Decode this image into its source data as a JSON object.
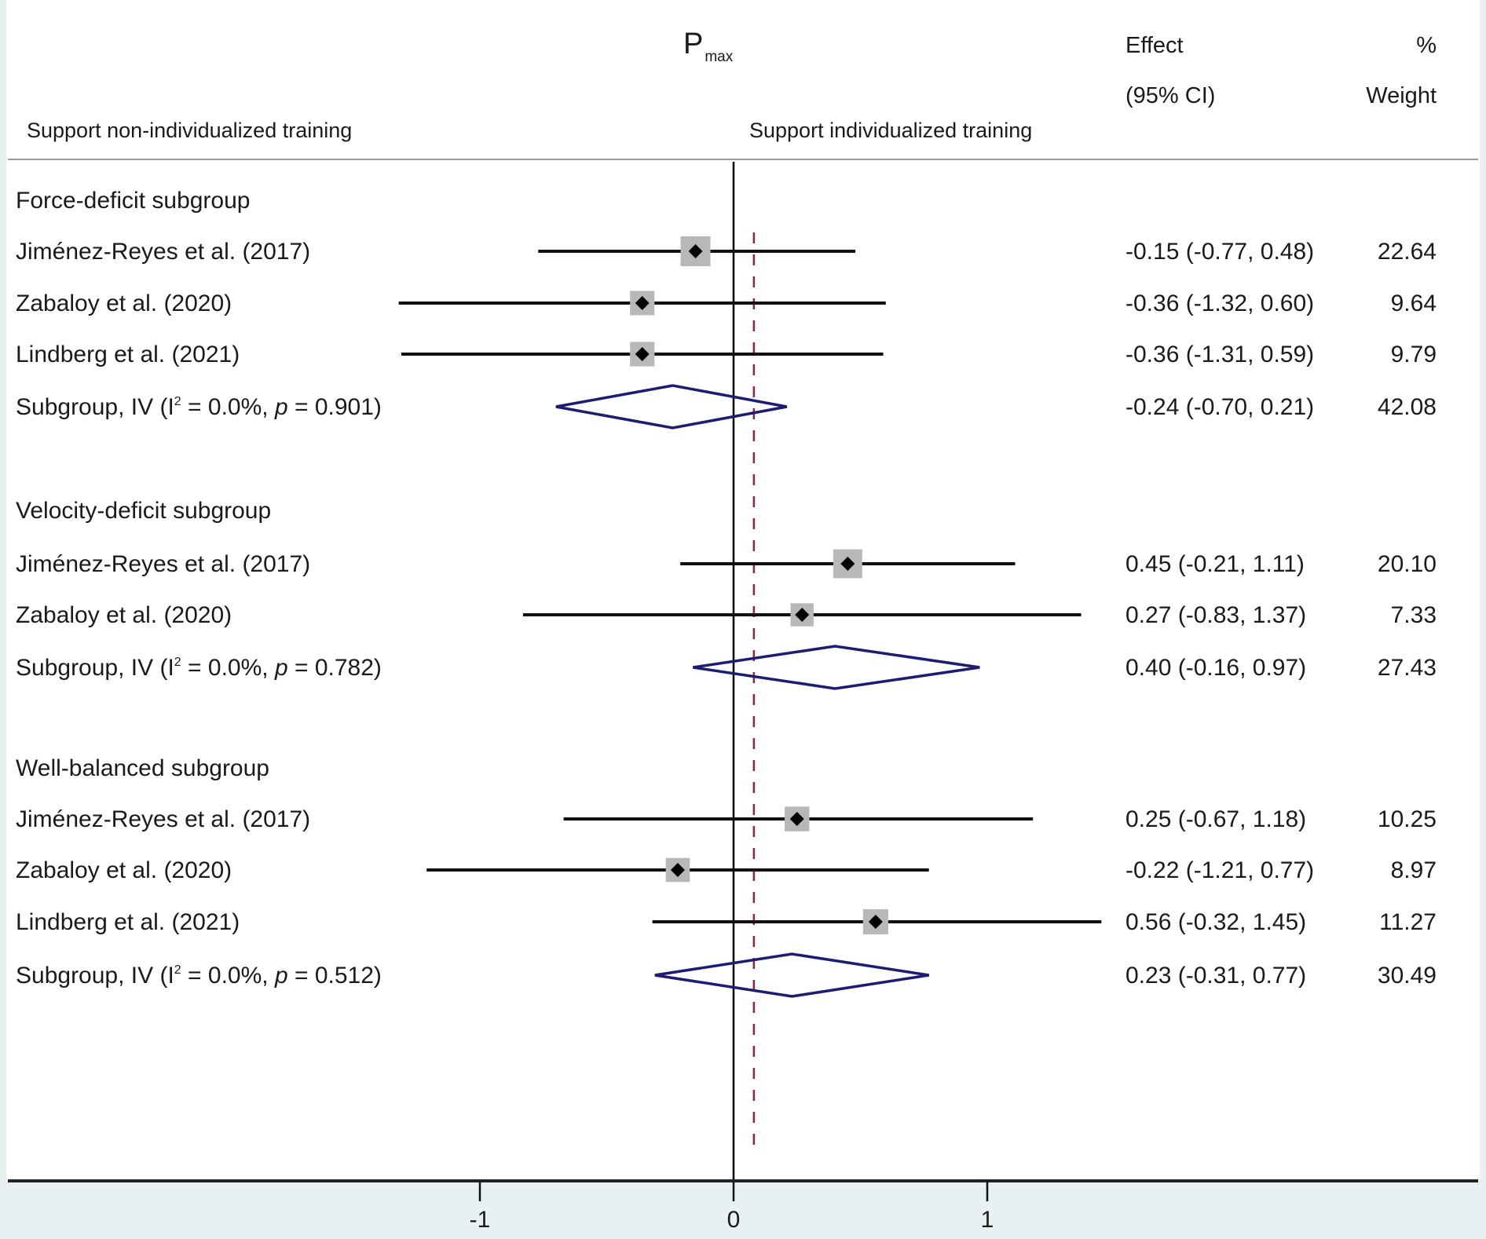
{
  "header": {
    "title_main": "P",
    "title_sub": "max",
    "left_direction": "Support non-individualized training",
    "right_direction": "Support individualized training",
    "effect_col_line1": "Effect",
    "effect_col_line2": "(95% CI)",
    "weight_col_line1": "%",
    "weight_col_line2": "Weight"
  },
  "colors": {
    "ci_line": "#111111",
    "weight_box": "#b8b8b8",
    "point": "#000000",
    "diamond": "#1c1c72",
    "overall_line": "#8b2a36",
    "axis_band": "#e9f0f2"
  },
  "chart_data": {
    "type": "forest",
    "title": "Pmax",
    "xlabel": "",
    "x_ticks": [
      -1,
      0,
      1
    ],
    "x_tick_labels": [
      "-1",
      "0",
      "1"
    ],
    "xlim": [
      -2.85,
      3.0
    ],
    "null_line": 0,
    "overall_effect_line": 0.08,
    "subgroups": [
      {
        "name": "Force-deficit subgroup",
        "studies": [
          {
            "label": "Jiménez-Reyes et al. (2017)",
            "effect": -0.15,
            "lower": -0.77,
            "upper": 0.48,
            "text": "-0.15 (-0.77, 0.48)",
            "weight": "22.64"
          },
          {
            "label": "Zabaloy et al. (2020)",
            "effect": -0.36,
            "lower": -1.32,
            "upper": 0.6,
            "text": "-0.36 (-1.32, 0.60)",
            "weight": "9.64"
          },
          {
            "label": "Lindberg et al. (2021)",
            "effect": -0.36,
            "lower": -1.31,
            "upper": 0.59,
            "text": "-0.36 (-1.31, 0.59)",
            "weight": "9.79"
          }
        ],
        "pooled": {
          "label_prefix": "Subgroup, IV (I",
          "label_sup": "2",
          "label_mid": " = 0.0%, ",
          "label_p": "p",
          "label_end": " = 0.901)",
          "effect": -0.24,
          "lower": -0.7,
          "upper": 0.21,
          "text": "-0.24 (-0.70, 0.21)",
          "weight": "42.08"
        }
      },
      {
        "name": "Velocity-deficit subgroup",
        "studies": [
          {
            "label": "Jiménez-Reyes et al. (2017)",
            "effect": 0.45,
            "lower": -0.21,
            "upper": 1.11,
            "text": "0.45 (-0.21, 1.11)",
            "weight": "20.10"
          },
          {
            "label": "Zabaloy et al. (2020)",
            "effect": 0.27,
            "lower": -0.83,
            "upper": 1.37,
            "text": "0.27 (-0.83, 1.37)",
            "weight": "7.33"
          }
        ],
        "pooled": {
          "label_prefix": "Subgroup, IV (I",
          "label_sup": "2",
          "label_mid": " = 0.0%, ",
          "label_p": "p",
          "label_end": " = 0.782)",
          "effect": 0.4,
          "lower": -0.16,
          "upper": 0.97,
          "text": "0.40 (-0.16, 0.97)",
          "weight": "27.43"
        }
      },
      {
        "name": "Well-balanced subgroup",
        "studies": [
          {
            "label": "Jiménez-Reyes et al. (2017)",
            "effect": 0.25,
            "lower": -0.67,
            "upper": 1.18,
            "text": "0.25 (-0.67, 1.18)",
            "weight": "10.25"
          },
          {
            "label": "Zabaloy et al. (2020)",
            "effect": -0.22,
            "lower": -1.21,
            "upper": 0.77,
            "text": "-0.22 (-1.21, 0.77)",
            "weight": "8.97"
          },
          {
            "label": "Lindberg et al. (2021)",
            "effect": 0.56,
            "lower": -0.32,
            "upper": 1.45,
            "text": "0.56 (-0.32, 1.45)",
            "weight": "11.27"
          }
        ],
        "pooled": {
          "label_prefix": "Subgroup, IV (I",
          "label_sup": "2",
          "label_mid": " = 0.0%, ",
          "label_p": "p",
          "label_end": " = 0.512)",
          "effect": 0.23,
          "lower": -0.31,
          "upper": 0.77,
          "text": "0.23 (-0.31, 0.77)",
          "weight": "30.49"
        }
      }
    ]
  }
}
